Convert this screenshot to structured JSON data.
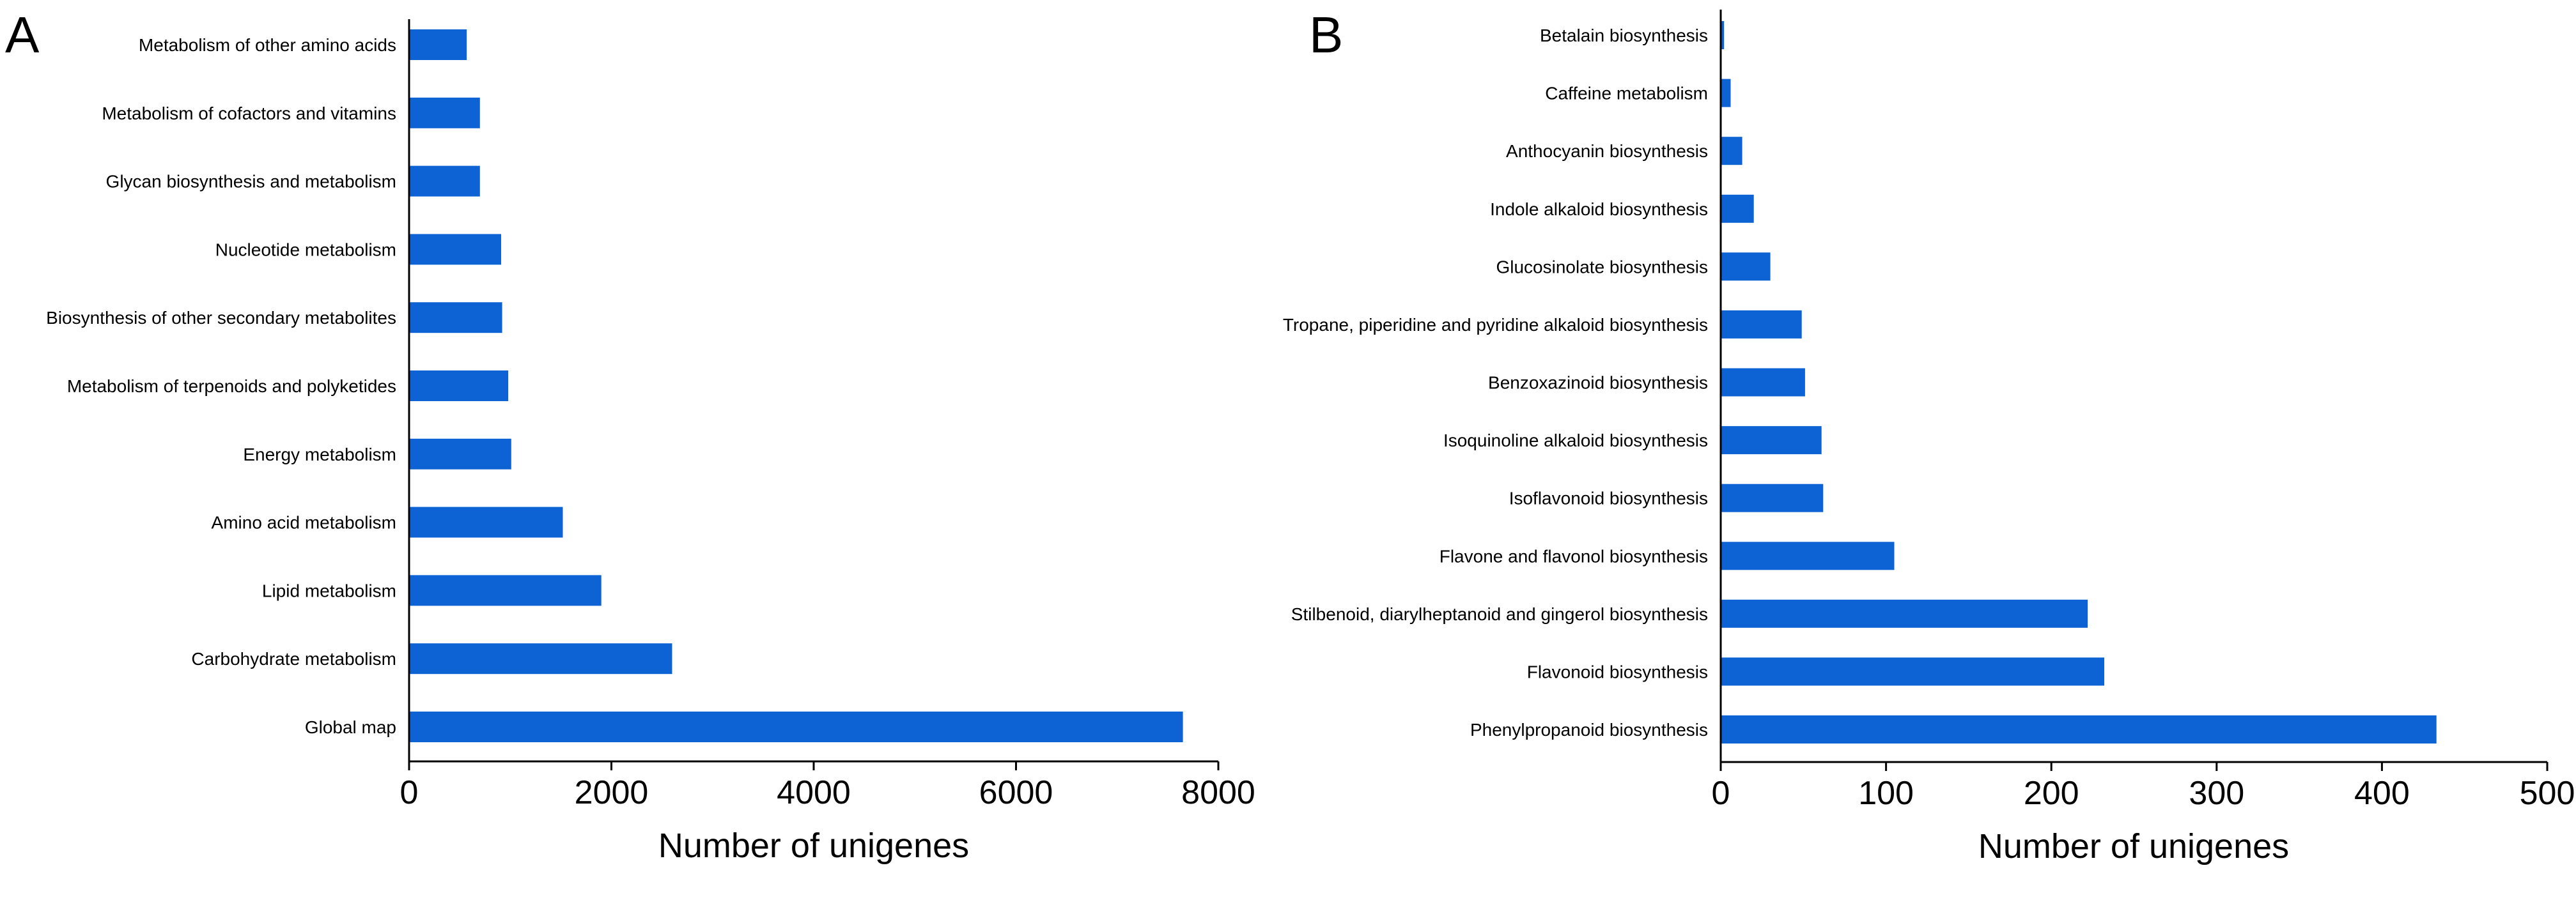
{
  "panels": [
    {
      "label": "A"
    },
    {
      "label": "B"
    }
  ],
  "chart_data": [
    {
      "type": "bar",
      "orientation": "horizontal",
      "categories": [
        "Metabolism of other amino acids",
        "Metabolism of cofactors and vitamins",
        "Glycan biosynthesis and metabolism",
        "Nucleotide metabolism",
        "Biosynthesis of other secondary metabolites",
        "Metabolism of terpenoids and polyketides",
        "Energy metabolism",
        "Amino acid metabolism",
        "Lipid metabolism",
        "Carbohydrate metabolism",
        "Global map"
      ],
      "values": [
        570,
        700,
        700,
        910,
        920,
        980,
        1010,
        1520,
        1900,
        2600,
        7650
      ],
      "xlabel": "Number of unigenes",
      "ylabel": "",
      "xlim": [
        0,
        8000
      ],
      "xticks": [
        0,
        2000,
        4000,
        6000,
        8000
      ],
      "bar_color": "#0e63d4",
      "grid": false,
      "legend": "none"
    },
    {
      "type": "bar",
      "orientation": "horizontal",
      "categories": [
        "Betalain biosynthesis",
        "Caffeine metabolism",
        "Anthocyanin biosynthesis",
        "Indole alkaloid biosynthesis",
        "Glucosinolate biosynthesis",
        "Tropane, piperidine and pyridine alkaloid biosynthesis",
        "Benzoxazinoid biosynthesis",
        "Isoquinoline alkaloid biosynthesis",
        "Isoflavonoid biosynthesis",
        "Flavone and flavonol biosynthesis",
        "Stilbenoid, diarylheptanoid and gingerol biosynthesis",
        "Flavonoid biosynthesis",
        "Phenylpropanoid biosynthesis"
      ],
      "values": [
        2,
        6,
        13,
        20,
        30,
        49,
        51,
        61,
        62,
        105,
        222,
        232,
        433
      ],
      "xlabel": "Number of unigenes",
      "ylabel": "",
      "xlim": [
        0,
        500
      ],
      "xticks": [
        0,
        100,
        200,
        300,
        400,
        500
      ],
      "bar_color": "#0e63d4",
      "grid": false,
      "legend": "none"
    }
  ]
}
